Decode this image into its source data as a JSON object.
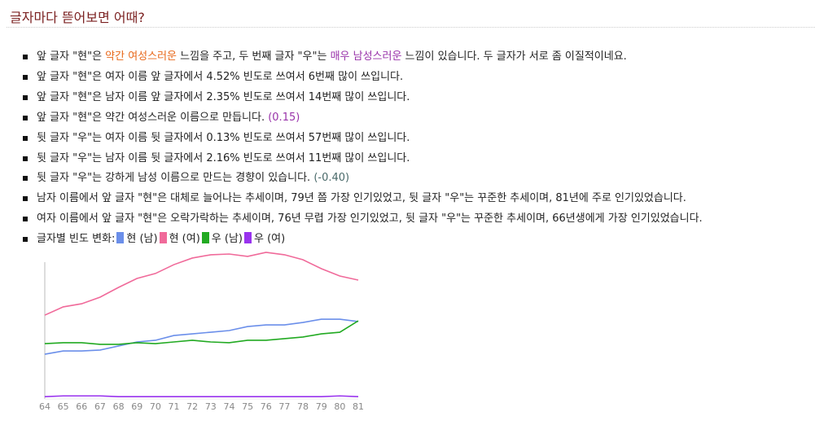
{
  "header": {
    "title": "글자마다 뜯어보면 어때?"
  },
  "items": [
    [
      {
        "text": "앞 글자 \"현\"은 "
      },
      {
        "text": "약간 여성스러운",
        "color": "#e8681a"
      },
      {
        "text": " 느낌을 주고, 두 번째 글자 \"우\"는 "
      },
      {
        "text": "매우 남성스러운",
        "color": "#9933aa"
      },
      {
        "text": " 느낌이 있습니다. 두 글자가 서로 좀 이질적이네요."
      }
    ],
    [
      {
        "text": "앞 글자 \"현\"은 여자 이름 앞 글자에서 4.52% 빈도로 쓰여서 6번째 많이 쓰입니다."
      }
    ],
    [
      {
        "text": "앞 글자 \"현\"은 남자 이름 앞 글자에서 2.35% 빈도로 쓰여서 14번째 많이 쓰입니다."
      }
    ],
    [
      {
        "text": "앞 글자 \"현\"은 약간 여성스러운 이름으로 만듭니다. "
      },
      {
        "text": "(0.15)",
        "color": "#9933aa"
      }
    ],
    [
      {
        "text": "뒷 글자 \"우\"는 여자 이름 뒷 글자에서 0.13% 빈도로 쓰여서 57번째 많이 쓰입니다."
      }
    ],
    [
      {
        "text": "뒷 글자 \"우\"는 남자 이름 뒷 글자에서 2.16% 빈도로 쓰여서 11번째 많이 쓰입니다."
      }
    ],
    [
      {
        "text": "뒷 글자 \"우\"는 강하게 남성 이름으로 만드는 경향이 있습니다. "
      },
      {
        "text": "(-0.40)",
        "color": "#4a6a6a"
      }
    ],
    [
      {
        "text": "남자 이름에서 앞 글자 \"현\"은 대체로 늘어나는 추세이며, 79년 쯤 가장 인기있었고, 뒷 글자 \"우\"는 꾸준한 추세이며, 81년에 주로 인기있었습니다."
      }
    ],
    [
      {
        "text": "여자 이름에서 앞 글자 \"현\"은 오락가락하는 추세이며, 76년 무렵 가장 인기있었고, 뒷 글자 \"우\"는 꾸준한 추세이며, 66년생에게 가장 인기있었습니다."
      }
    ]
  ],
  "legend_label": "글자별 빈도 변화:",
  "chart_data": {
    "type": "line",
    "categories": [
      "64",
      "65",
      "66",
      "67",
      "68",
      "69",
      "70",
      "71",
      "72",
      "73",
      "74",
      "75",
      "76",
      "77",
      "78",
      "79",
      "80",
      "81"
    ],
    "ylim": [
      0,
      10
    ],
    "series": [
      {
        "name": "현 (남)",
        "color": "#6b8fea",
        "values": [
          2.93,
          3.15,
          3.15,
          3.21,
          3.48,
          3.75,
          3.86,
          4.18,
          4.29,
          4.4,
          4.51,
          4.78,
          4.89,
          4.89,
          5.05,
          5.27,
          5.27,
          5.11
        ]
      },
      {
        "name": "현 (여)",
        "color": "#f06a9a",
        "values": [
          5.54,
          6.09,
          6.3,
          6.74,
          7.39,
          7.99,
          8.32,
          8.91,
          9.35,
          9.57,
          9.62,
          9.46,
          9.73,
          9.57,
          9.24,
          8.64,
          8.15,
          7.88
        ]
      },
      {
        "name": "우 (남)",
        "color": "#22aa22",
        "values": [
          3.64,
          3.7,
          3.7,
          3.59,
          3.59,
          3.7,
          3.64,
          3.75,
          3.86,
          3.75,
          3.7,
          3.86,
          3.86,
          3.97,
          4.08,
          4.29,
          4.4,
          5.16
        ]
      },
      {
        "name": "우 (여)",
        "color": "#9933ee",
        "values": [
          0.1,
          0.15,
          0.15,
          0.15,
          0.1,
          0.1,
          0.1,
          0.1,
          0.1,
          0.1,
          0.1,
          0.1,
          0.1,
          0.1,
          0.1,
          0.1,
          0.15,
          0.1
        ]
      }
    ]
  }
}
